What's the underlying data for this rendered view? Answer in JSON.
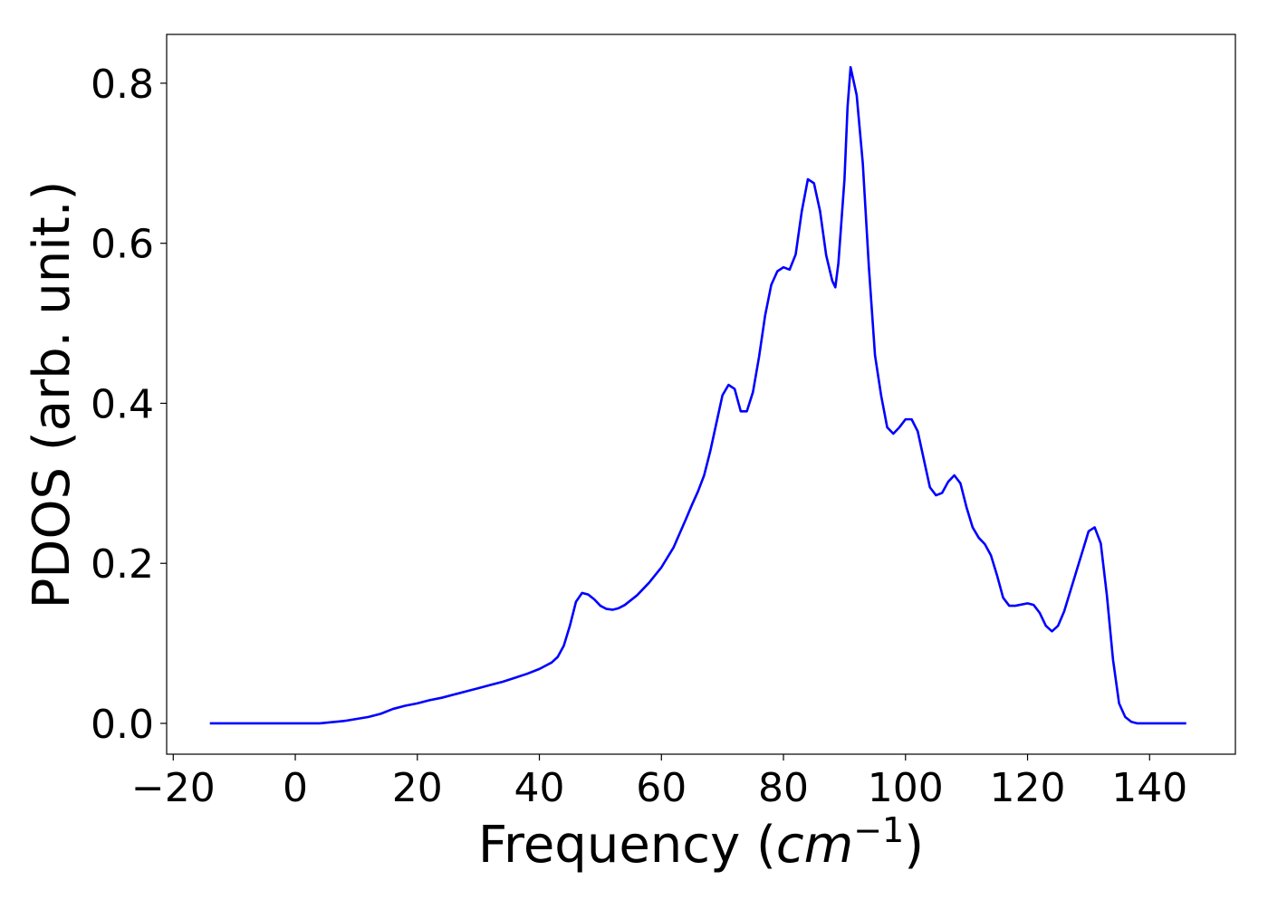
{
  "chart_data": {
    "type": "line",
    "xlabel": {
      "prefix": "Frequency (",
      "unit": "cm",
      "exponent": "−1",
      "suffix": ")"
    },
    "ylabel": "PDOS (arb. unit.)",
    "x": [
      -14,
      0,
      4,
      8,
      12,
      14,
      16,
      18,
      20,
      22,
      24,
      26,
      28,
      30,
      32,
      34,
      36,
      38,
      40,
      42,
      43,
      44,
      45,
      46,
      47,
      48,
      49,
      50,
      51,
      52,
      53,
      54,
      56,
      58,
      60,
      62,
      64,
      65,
      66,
      67,
      68,
      69,
      70,
      71,
      72,
      73,
      74,
      75,
      76,
      77,
      78,
      79,
      80,
      81,
      82,
      83,
      84,
      85,
      86,
      87,
      88,
      88.5,
      89,
      90,
      90.5,
      91,
      92,
      93,
      94,
      95,
      96,
      97,
      98,
      99,
      100,
      101,
      102,
      103,
      104,
      105,
      106,
      107,
      108,
      109,
      110,
      111,
      112,
      113,
      114,
      115,
      116,
      117,
      118,
      120,
      121,
      122,
      123,
      124,
      125,
      126,
      128,
      129,
      130,
      131,
      132,
      133,
      134,
      135,
      136,
      137,
      138,
      146
    ],
    "series": [
      {
        "color": "#0000ff",
        "values": [
          0,
          0,
          0,
          0.003,
          0.008,
          0.012,
          0.018,
          0.022,
          0.025,
          0.029,
          0.032,
          0.036,
          0.04,
          0.044,
          0.048,
          0.052,
          0.057,
          0.062,
          0.068,
          0.076,
          0.083,
          0.097,
          0.122,
          0.152,
          0.163,
          0.161,
          0.155,
          0.147,
          0.143,
          0.142,
          0.144,
          0.148,
          0.16,
          0.176,
          0.195,
          0.22,
          0.255,
          0.273,
          0.29,
          0.31,
          0.34,
          0.375,
          0.41,
          0.423,
          0.418,
          0.39,
          0.39,
          0.414,
          0.458,
          0.51,
          0.548,
          0.565,
          0.57,
          0.567,
          0.586,
          0.64,
          0.68,
          0.675,
          0.64,
          0.585,
          0.553,
          0.545,
          0.575,
          0.68,
          0.77,
          0.82,
          0.785,
          0.7,
          0.57,
          0.46,
          0.41,
          0.37,
          0.362,
          0.37,
          0.38,
          0.38,
          0.365,
          0.33,
          0.295,
          0.285,
          0.288,
          0.302,
          0.31,
          0.3,
          0.27,
          0.245,
          0.232,
          0.224,
          0.21,
          0.185,
          0.157,
          0.147,
          0.147,
          0.15,
          0.148,
          0.138,
          0.122,
          0.115,
          0.122,
          0.14,
          0.19,
          0.215,
          0.24,
          0.245,
          0.225,
          0.16,
          0.08,
          0.025,
          0.008,
          0.002,
          0,
          0
        ]
      }
    ],
    "xlim": [
      -21.08,
      154.06
    ],
    "xticks": [
      {
        "value": -20,
        "label": "−20"
      },
      0,
      20,
      40,
      60,
      80,
      100,
      120,
      140
    ],
    "ylim": [
      -0.0385,
      0.861
    ],
    "yticks": [
      {
        "value": 0,
        "label": "0.0"
      },
      0.2,
      0.4,
      0.6,
      0.8
    ],
    "grid": false
  }
}
